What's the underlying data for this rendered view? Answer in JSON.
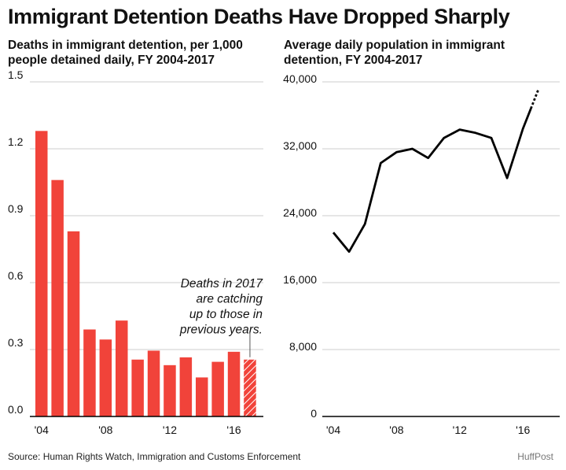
{
  "headline": "Immigrant Detention Deaths Have Dropped Sharply",
  "colors": {
    "bar": "#f1433a",
    "line": "#000000",
    "grid": "#cccccc",
    "axis": "#000000",
    "text": "#111111"
  },
  "chart_data": [
    {
      "type": "bar",
      "title_lines": [
        "Deaths in immigrant detention, per 1,000",
        "people detained daily, FY 2004-2017"
      ],
      "x": [
        2004,
        2005,
        2006,
        2007,
        2008,
        2009,
        2010,
        2011,
        2012,
        2013,
        2014,
        2015,
        2016,
        2017
      ],
      "values": [
        1.28,
        1.06,
        0.83,
        0.39,
        0.345,
        0.43,
        0.255,
        0.295,
        0.23,
        0.265,
        0.175,
        0.245,
        0.29,
        0.255
      ],
      "partial_year": 2017,
      "ylim": [
        0,
        1.5
      ],
      "yticks": [
        0,
        0.3,
        0.6,
        0.9,
        1.2,
        1.5
      ],
      "ytick_labels": [
        "0.0",
        "0.3",
        "0.6",
        "0.9",
        "1.2",
        "1.5"
      ],
      "xticks": [
        2004,
        2008,
        2012,
        2016
      ],
      "xtick_labels": [
        "'04",
        "'08",
        "'12",
        "'16"
      ],
      "grid": true,
      "annotation": {
        "lines": [
          "Deaths in 2017",
          "are catching",
          "up to those in",
          "previous years."
        ],
        "target_year": 2017
      }
    },
    {
      "type": "line",
      "title_lines": [
        "Average daily population in immigrant",
        "detention, FY 2004-2017"
      ],
      "x": [
        2004,
        2005,
        2006,
        2007,
        2008,
        2009,
        2010,
        2011,
        2012,
        2013,
        2014,
        2015,
        2016,
        2017
      ],
      "values": [
        22000,
        19700,
        23000,
        30300,
        31600,
        32000,
        30900,
        33300,
        34300,
        33900,
        33300,
        28500,
        34400,
        39200
      ],
      "dashed_from": 2016.5,
      "ylim": [
        0,
        40000
      ],
      "yticks": [
        0,
        8000,
        16000,
        24000,
        32000,
        40000
      ],
      "ytick_labels": [
        "0",
        "8,000",
        "16,000",
        "24,000",
        "32,000",
        "40,000"
      ],
      "xticks": [
        2004,
        2008,
        2012,
        2016
      ],
      "xtick_labels": [
        "'04",
        "'08",
        "'12",
        "'16"
      ],
      "grid": true
    }
  ],
  "footer": {
    "source": "Source: Human Rights Watch, Immigration and Customs Enforcement",
    "credit": "HuffPost"
  }
}
